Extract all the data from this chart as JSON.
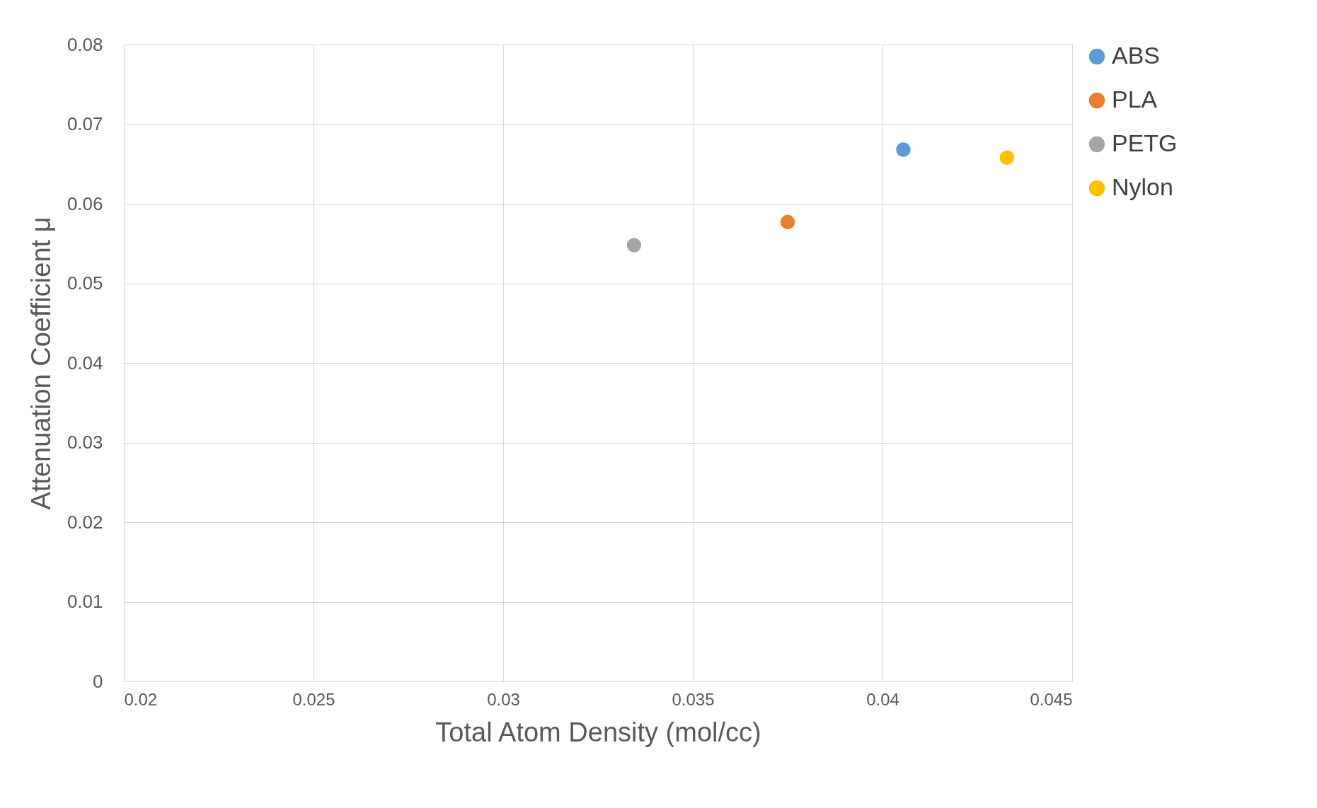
{
  "chart_data": {
    "type": "scatter",
    "xlabel": "Total Atom Density (mol/cc)",
    "ylabel": "Attenuation Coefficient μ",
    "xlim": [
      0.02,
      0.045
    ],
    "xticks": [
      0.02,
      0.025,
      0.03,
      0.035,
      0.04,
      0.045
    ],
    "ylim": [
      0,
      0.08
    ],
    "yticks": [
      0,
      0.01,
      0.02,
      0.03,
      0.04,
      0.05,
      0.06,
      0.07,
      0.08
    ],
    "grid": true,
    "legend": "right",
    "marker": "circle",
    "series": [
      {
        "name": "ABS",
        "color": "#5b9bd5",
        "x": [
          0.04055
        ],
        "values": [
          0.0668
        ]
      },
      {
        "name": "PLA",
        "color": "#ed7d31",
        "x": [
          0.0375
        ],
        "values": [
          0.0577
        ]
      },
      {
        "name": "PETG",
        "color": "#a5a5a5",
        "x": [
          0.03345
        ],
        "values": [
          0.0548
        ]
      },
      {
        "name": "Nylon",
        "color": "#ffc000",
        "x": [
          0.04328
        ],
        "values": [
          0.0658
        ]
      }
    ]
  }
}
